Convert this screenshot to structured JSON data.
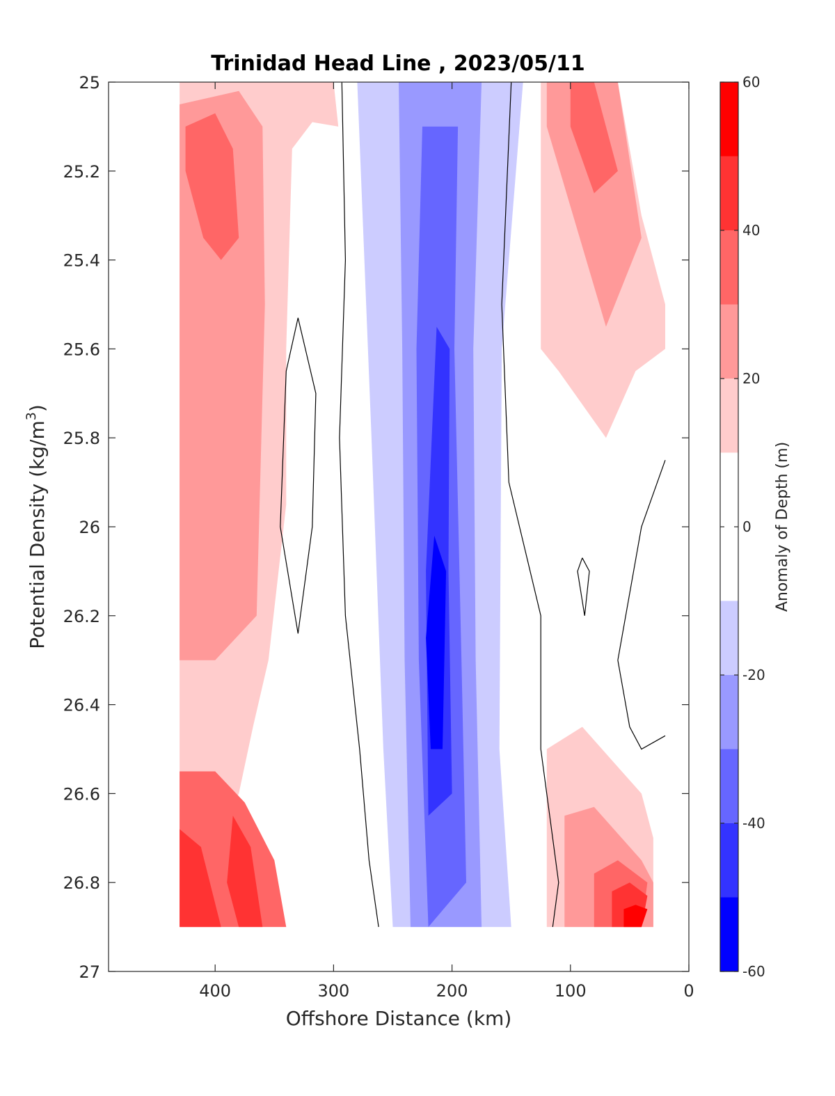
{
  "chart_data": {
    "type": "contour",
    "title": "Trinidad Head Line , 2023/05/11",
    "xlabel": "Offshore Distance (km)",
    "ylabel_main": "Potential Density (kg/m",
    "ylabel_sup": "3",
    "ylabel_close": ")",
    "xlim": [
      490,
      0
    ],
    "ylim": [
      25,
      27
    ],
    "x_reversed": true,
    "y_reversed": true,
    "xticks": [
      400,
      300,
      200,
      100,
      0
    ],
    "yticks": [
      25,
      25.2,
      25.4,
      25.6,
      25.8,
      26,
      26.2,
      26.4,
      26.6,
      26.8,
      27
    ],
    "xtick_labels": [
      "400",
      "300",
      "200",
      "100",
      "0"
    ],
    "ytick_labels": [
      "25",
      "25.2",
      "25.4",
      "25.6",
      "25.8",
      "26",
      "26.2",
      "26.4",
      "26.6",
      "26.8",
      "27"
    ],
    "colorbar": {
      "label": "Anomaly of Depth (m)",
      "range": [
        -60,
        60
      ],
      "tick_values": [
        60,
        40,
        20,
        0,
        -20,
        -40,
        -60
      ],
      "tick_labels": [
        "60",
        "40",
        "20",
        "0",
        "-20",
        "-40",
        "-60"
      ],
      "levels": [
        -60,
        -50,
        -40,
        -30,
        -20,
        -10,
        10,
        20,
        30,
        40,
        50,
        60
      ],
      "band_colors": [
        "#0000ff",
        "#3333ff",
        "#6666ff",
        "#9999ff",
        "#ccccff",
        "#ffffff",
        "#ffcccc",
        "#ff9999",
        "#ff6666",
        "#ff3333",
        "#ff0000"
      ]
    },
    "data_extent_x": [
      430,
      20
    ],
    "data_extent_y": [
      25,
      26.9
    ],
    "regions": [
      {
        "level": 10,
        "color": "#ffcccc",
        "points": [
          [
            430,
            25
          ],
          [
            300,
            25
          ],
          [
            296,
            25.1
          ],
          [
            318,
            25.09
          ],
          [
            335,
            25.15
          ],
          [
            340,
            25.6
          ],
          [
            340,
            25.95
          ],
          [
            355,
            26.3
          ],
          [
            368,
            26.45
          ],
          [
            380,
            26.6
          ],
          [
            400,
            26.7
          ],
          [
            430,
            26.75
          ],
          [
            430,
            25
          ]
        ]
      },
      {
        "level": 20,
        "color": "#ff9999",
        "points": [
          [
            430,
            25.05
          ],
          [
            380,
            25.02
          ],
          [
            360,
            25.1
          ],
          [
            358,
            25.5
          ],
          [
            365,
            26.2
          ],
          [
            400,
            26.3
          ],
          [
            430,
            26.3
          ],
          [
            430,
            25.05
          ]
        ]
      },
      {
        "level": 30,
        "color": "#ff6666",
        "points": [
          [
            425,
            25.1
          ],
          [
            400,
            25.07
          ],
          [
            385,
            25.15
          ],
          [
            380,
            25.35
          ],
          [
            395,
            25.4
          ],
          [
            410,
            25.35
          ],
          [
            425,
            25.2
          ],
          [
            425,
            25.1
          ]
        ]
      },
      {
        "level": 30,
        "color": "#ff6666",
        "points": [
          [
            430,
            26.55
          ],
          [
            400,
            26.55
          ],
          [
            375,
            26.62
          ],
          [
            350,
            26.75
          ],
          [
            340,
            26.9
          ],
          [
            430,
            26.9
          ],
          [
            430,
            26.55
          ]
        ]
      },
      {
        "level": 40,
        "color": "#ff3333",
        "points": [
          [
            430,
            26.68
          ],
          [
            412,
            26.72
          ],
          [
            395,
            26.9
          ],
          [
            430,
            26.9
          ],
          [
            430,
            26.68
          ]
        ]
      },
      {
        "level": 40,
        "color": "#ff3333",
        "points": [
          [
            385,
            26.65
          ],
          [
            370,
            26.72
          ],
          [
            360,
            26.9
          ],
          [
            380,
            26.9
          ],
          [
            390,
            26.8
          ],
          [
            385,
            26.65
          ]
        ]
      },
      {
        "level": -10,
        "color": "#ccccff",
        "points": [
          [
            280,
            25
          ],
          [
            140,
            25
          ],
          [
            158,
            25.6
          ],
          [
            160,
            26.5
          ],
          [
            150,
            26.9
          ],
          [
            250,
            26.9
          ],
          [
            258,
            26.5
          ],
          [
            268,
            25.8
          ],
          [
            280,
            25
          ]
        ]
      },
      {
        "level": -20,
        "color": "#9999ff",
        "points": [
          [
            245,
            25
          ],
          [
            175,
            25
          ],
          [
            182,
            25.6
          ],
          [
            180,
            26.3
          ],
          [
            175,
            26.9
          ],
          [
            235,
            26.9
          ],
          [
            240,
            26.3
          ],
          [
            242,
            25.6
          ],
          [
            245,
            25
          ]
        ]
      },
      {
        "level": -30,
        "color": "#6666ff",
        "points": [
          [
            225,
            25.1
          ],
          [
            195,
            25.1
          ],
          [
            198,
            25.6
          ],
          [
            192,
            26.3
          ],
          [
            188,
            26.8
          ],
          [
            220,
            26.9
          ],
          [
            228,
            26.3
          ],
          [
            230,
            25.6
          ],
          [
            225,
            25.1
          ]
        ]
      },
      {
        "level": -40,
        "color": "#3333ff",
        "points": [
          [
            213,
            25.55
          ],
          [
            202,
            25.6
          ],
          [
            203,
            26.1
          ],
          [
            200,
            26.6
          ],
          [
            220,
            26.65
          ],
          [
            222,
            26.1
          ],
          [
            213,
            25.55
          ]
        ]
      },
      {
        "level": -50,
        "color": "#0000ff",
        "points": [
          [
            215,
            26.02
          ],
          [
            205,
            26.1
          ],
          [
            208,
            26.5
          ],
          [
            218,
            26.5
          ],
          [
            222,
            26.25
          ],
          [
            215,
            26.02
          ]
        ]
      },
      {
        "level": 10,
        "color": "#ffcccc",
        "points": [
          [
            125,
            25
          ],
          [
            60,
            25
          ],
          [
            40,
            25.3
          ],
          [
            20,
            25.5
          ],
          [
            20,
            25.6
          ],
          [
            45,
            25.65
          ],
          [
            70,
            25.8
          ],
          [
            110,
            25.65
          ],
          [
            125,
            25.6
          ],
          [
            125,
            25
          ]
        ]
      },
      {
        "level": 20,
        "color": "#ff9999",
        "points": [
          [
            120,
            25
          ],
          [
            60,
            25
          ],
          [
            40,
            25.35
          ],
          [
            70,
            25.55
          ],
          [
            120,
            25.1
          ],
          [
            120,
            25
          ]
        ]
      },
      {
        "level": 30,
        "color": "#ff6666",
        "points": [
          [
            100,
            25
          ],
          [
            80,
            25
          ],
          [
            60,
            25.2
          ],
          [
            80,
            25.25
          ],
          [
            100,
            25.1
          ],
          [
            100,
            25
          ]
        ]
      },
      {
        "level": 10,
        "color": "#ffcccc",
        "points": [
          [
            120,
            26.5
          ],
          [
            90,
            26.45
          ],
          [
            40,
            26.6
          ],
          [
            30,
            26.7
          ],
          [
            30,
            26.9
          ],
          [
            120,
            26.9
          ],
          [
            120,
            26.5
          ]
        ]
      },
      {
        "level": 20,
        "color": "#ff9999",
        "points": [
          [
            105,
            26.65
          ],
          [
            80,
            26.63
          ],
          [
            40,
            26.75
          ],
          [
            30,
            26.8
          ],
          [
            30,
            26.9
          ],
          [
            105,
            26.9
          ],
          [
            105,
            26.65
          ]
        ]
      },
      {
        "level": 30,
        "color": "#ff6666",
        "points": [
          [
            80,
            26.78
          ],
          [
            60,
            26.75
          ],
          [
            35,
            26.8
          ],
          [
            40,
            26.9
          ],
          [
            80,
            26.9
          ],
          [
            80,
            26.78
          ]
        ]
      },
      {
        "level": 40,
        "color": "#ff3333",
        "points": [
          [
            65,
            26.82
          ],
          [
            50,
            26.8
          ],
          [
            35,
            26.83
          ],
          [
            40,
            26.9
          ],
          [
            65,
            26.9
          ],
          [
            65,
            26.82
          ]
        ]
      },
      {
        "level": 50,
        "color": "#ff0000",
        "points": [
          [
            55,
            26.86
          ],
          [
            45,
            26.85
          ],
          [
            35,
            26.86
          ],
          [
            40,
            26.9
          ],
          [
            55,
            26.9
          ],
          [
            55,
            26.86
          ]
        ]
      }
    ],
    "contour_lines": [
      {
        "level": 0,
        "points": [
          [
            293,
            25
          ],
          [
            290,
            25.4
          ],
          [
            295,
            25.8
          ],
          [
            290,
            26.2
          ],
          [
            278,
            26.5
          ],
          [
            270,
            26.75
          ],
          [
            262,
            26.9
          ]
        ]
      },
      {
        "level": 0,
        "points": [
          [
            150,
            25
          ],
          [
            158,
            25.5
          ],
          [
            152,
            25.9
          ],
          [
            125,
            26.2
          ],
          [
            125,
            26.5
          ],
          [
            110,
            26.8
          ],
          [
            115,
            26.9
          ]
        ]
      },
      {
        "level": 0,
        "points": [
          [
            330,
            25.53
          ],
          [
            315,
            25.7
          ],
          [
            318,
            26
          ],
          [
            330,
            26.24
          ],
          [
            345,
            26
          ],
          [
            340,
            25.65
          ],
          [
            330,
            25.53
          ]
        ]
      },
      {
        "level": 0,
        "points": [
          [
            90,
            26.07
          ],
          [
            84,
            26.1
          ],
          [
            88,
            26.2
          ],
          [
            94,
            26.1
          ],
          [
            90,
            26.07
          ]
        ]
      },
      {
        "level": 0,
        "points": [
          [
            20,
            25.85
          ],
          [
            40,
            26
          ],
          [
            60,
            26.3
          ],
          [
            50,
            26.45
          ],
          [
            40,
            26.5
          ],
          [
            20,
            26.47
          ]
        ]
      }
    ]
  }
}
